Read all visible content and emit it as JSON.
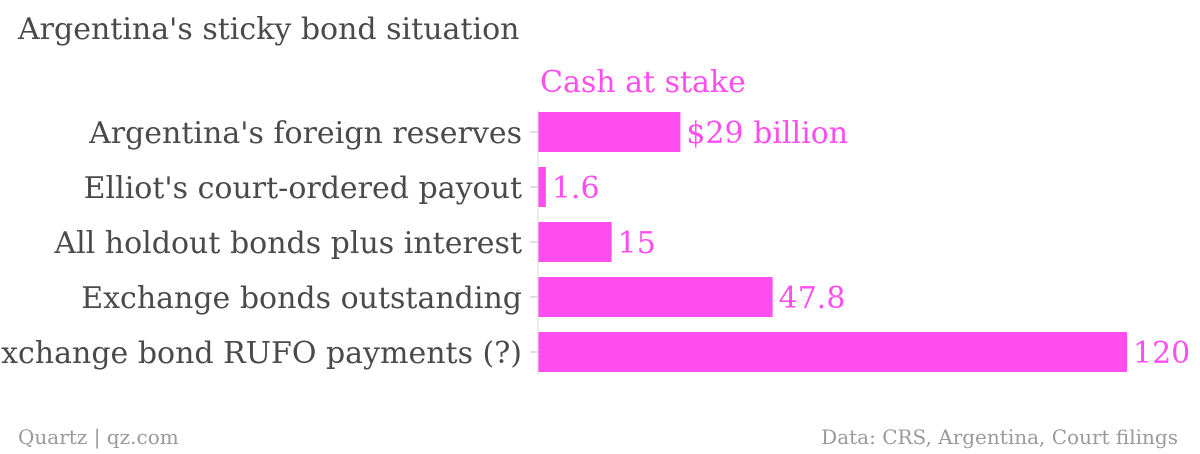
{
  "chart_data": {
    "type": "bar",
    "orientation": "horizontal",
    "title": "Argentina's sticky bond situation",
    "series": [
      {
        "name": "Cash at stake",
        "values": [
          29,
          1.6,
          15,
          47.8,
          120
        ],
        "value_labels": [
          "$29 billion",
          "1.6",
          "15",
          "47.8",
          "120"
        ]
      }
    ],
    "categories": [
      "Argentina's foreign reserves",
      "Elliot's court-ordered payout",
      "All holdout bonds plus interest",
      "Exchange bonds outstanding",
      "Exchange bond RUFO payments (?)"
    ],
    "xlim": [
      0,
      120
    ],
    "grid": false,
    "legend": "top",
    "colors": {
      "bar": "#ff4df0",
      "series_label": "#ff4df0",
      "category_text": "#4a4a4a"
    }
  },
  "footer": {
    "source_left": "Quartz | qz.com",
    "source_right": "Data: CRS, Argentina, Court filings"
  }
}
